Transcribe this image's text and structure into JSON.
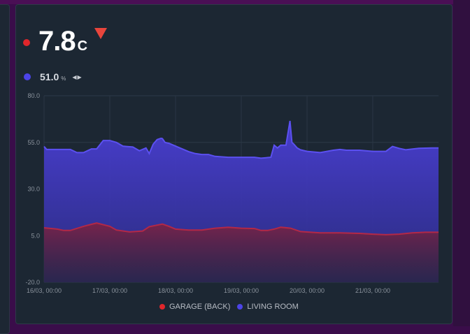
{
  "primary": {
    "value": "7.8",
    "unit": "C",
    "trend_icon": "down-arrow-icon",
    "dot_color": "#e0262b",
    "trend_color": "#e8453c"
  },
  "secondary": {
    "value": "51.0",
    "unit": "%",
    "trend_icon": "left-right-arrows-icon",
    "dot_color": "#4c44e8"
  },
  "chart_data": {
    "type": "area",
    "ylim": [
      -20,
      80
    ],
    "y_ticks": [
      "80.0",
      "55.0",
      "30.0",
      "5.0",
      "-20.0"
    ],
    "x_ticks": [
      "16/03, 00:00",
      "17/03, 00:00",
      "18/03, 00:00",
      "19/03, 00:00",
      "20/03, 00:00",
      "21/03, 00:00"
    ],
    "grid": true,
    "legend_position": "bottom",
    "series": [
      {
        "name": "LIVING ROOM",
        "color": "#5b50f0",
        "x": [
          0,
          0.04,
          0.1,
          0.2,
          0.3,
          0.4,
          0.5,
          0.6,
          0.72,
          0.8,
          0.9,
          1.0,
          1.1,
          1.2,
          1.25,
          1.35,
          1.45,
          1.55,
          1.6,
          1.66,
          1.72,
          1.78,
          1.8,
          1.84,
          1.9,
          2.0,
          2.1,
          2.2,
          2.3,
          2.4,
          2.5,
          2.6,
          2.8,
          3.0,
          3.2,
          3.3,
          3.45,
          3.5,
          3.55,
          3.6,
          3.68,
          3.74,
          3.77,
          3.8,
          3.85,
          3.9,
          4.0,
          4.2,
          4.4,
          4.5,
          4.6,
          4.8,
          5.0,
          5.2,
          5.3,
          5.4,
          5.5,
          5.7,
          5.9,
          6.0
        ],
        "y": [
          52.8,
          51.2,
          51.2,
          51.2,
          51.2,
          51.2,
          49.5,
          49.5,
          51.5,
          51.5,
          56.0,
          56.0,
          55.0,
          53.0,
          52.8,
          52.5,
          50.5,
          52.0,
          49.0,
          54.0,
          56.5,
          57.2,
          57.0,
          55.0,
          54.5,
          53.0,
          51.5,
          50.0,
          49.0,
          48.5,
          48.5,
          47.5,
          47.0,
          47.0,
          47.0,
          46.5,
          47.0,
          53.5,
          52.0,
          53.5,
          53.5,
          66.5,
          55.0,
          54.0,
          52.0,
          51.0,
          50.2,
          49.5,
          50.8,
          51.2,
          50.8,
          50.8,
          50.2,
          50.2,
          52.8,
          51.8,
          51.0,
          51.8,
          52.0,
          52.0
        ]
      },
      {
        "name": "GARAGE (BACK)",
        "color": "#b32847",
        "x": [
          0,
          0.2,
          0.3,
          0.4,
          0.6,
          0.8,
          1.0,
          1.1,
          1.3,
          1.5,
          1.6,
          1.8,
          1.9,
          2.0,
          2.2,
          2.4,
          2.6,
          2.8,
          3.0,
          3.2,
          3.3,
          3.4,
          3.5,
          3.6,
          3.75,
          3.9,
          4.2,
          4.5,
          4.8,
          5.0,
          5.2,
          5.4,
          5.6,
          5.8,
          6.0
        ],
        "y": [
          9.2,
          8.5,
          7.8,
          7.8,
          10.0,
          11.8,
          10.0,
          8.0,
          7.0,
          7.5,
          9.8,
          11.2,
          10.0,
          8.5,
          8.0,
          8.0,
          9.0,
          9.5,
          9.0,
          8.8,
          7.8,
          7.8,
          8.5,
          9.5,
          9.0,
          7.2,
          6.5,
          6.5,
          6.2,
          5.8,
          5.5,
          5.8,
          6.5,
          6.8,
          6.8
        ]
      }
    ]
  }
}
